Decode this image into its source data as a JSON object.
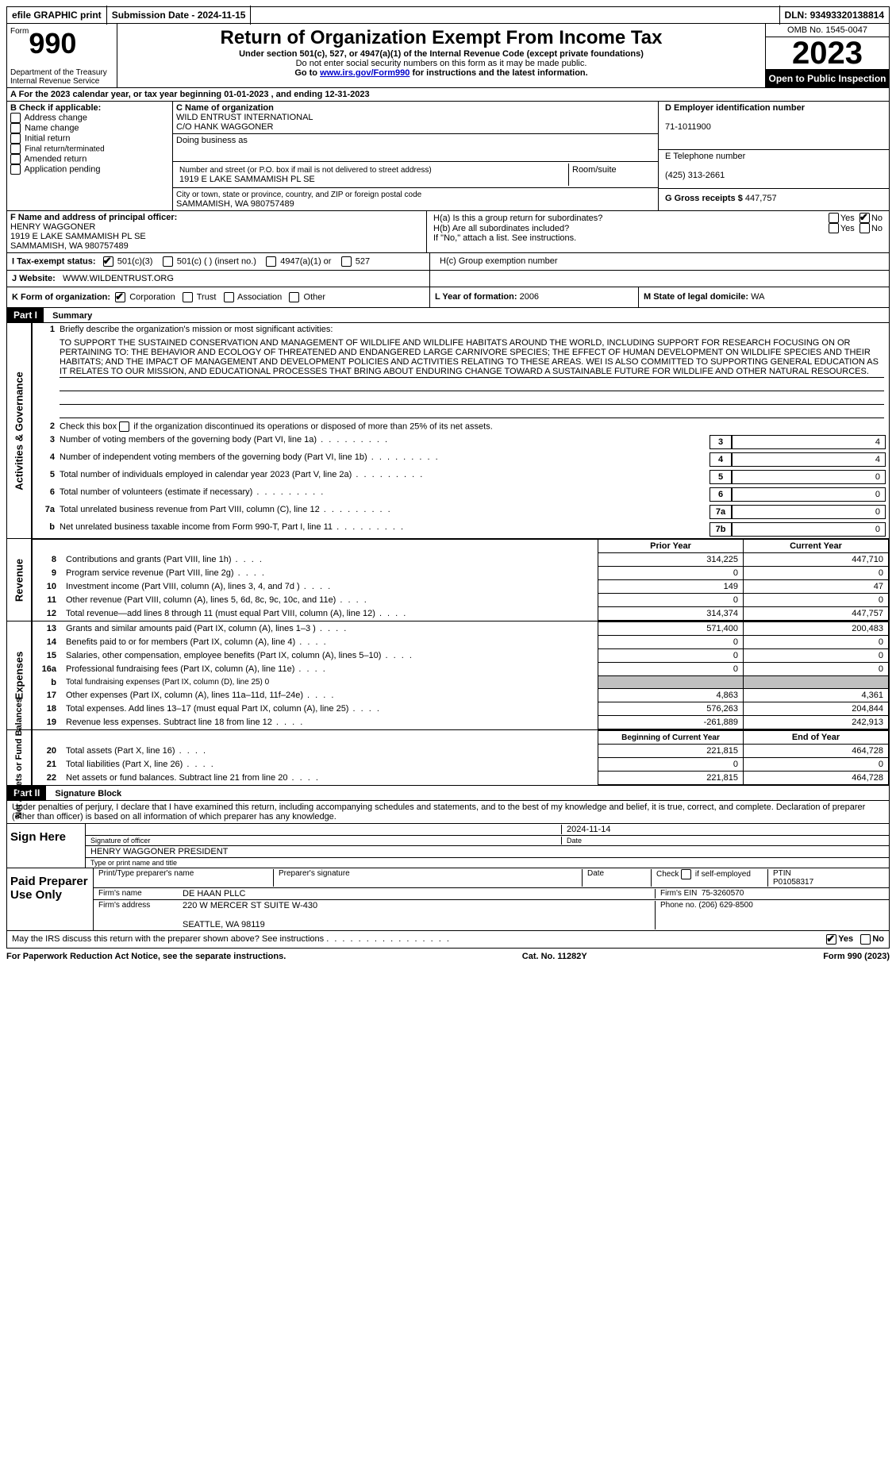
{
  "topbar": {
    "efile": "efile GRAPHIC print",
    "submission": "Submission Date - 2024-11-15",
    "dln_label": "DLN:",
    "dln": "93493320138814"
  },
  "header": {
    "form_label": "Form",
    "form_number": "990",
    "title": "Return of Organization Exempt From Income Tax",
    "subtitle": "Under section 501(c), 527, or 4947(a)(1) of the Internal Revenue Code (except private foundations)",
    "ssn_warn": "Do not enter social security numbers on this form as it may be made public.",
    "goto": "Go to ",
    "goto_link": "www.irs.gov/Form990",
    "goto_rest": " for instructions and the latest information.",
    "dept": "Department of the Treasury",
    "irs": "Internal Revenue Service",
    "omb": "OMB No. 1545-0047",
    "year": "2023",
    "open": "Open to Public Inspection"
  },
  "rowA": {
    "text": "A For the 2023 calendar year, or tax year beginning 01-01-2023    , and ending 12-31-2023"
  },
  "colB": {
    "label": "B Check if applicable:",
    "opts": [
      "Address change",
      "Name change",
      "Initial return",
      "Final return/terminated",
      "Amended return",
      "Application pending"
    ]
  },
  "colC": {
    "name_label": "C Name of organization",
    "name1": "WILD ENTRUST INTERNATIONAL",
    "name2": "C/O HANK WAGGONER",
    "dba_label": "Doing business as",
    "street_label": "Number and street (or P.O. box if mail is not delivered to street address)",
    "street": "1919 E LAKE SAMMAMISH PL SE",
    "suite_label": "Room/suite",
    "city_label": "City or town, state or province, country, and ZIP or foreign postal code",
    "city": "SAMMAMISH, WA  980757489"
  },
  "colD": {
    "ein_label": "D Employer identification number",
    "ein": "71-1011900",
    "tel_label": "E Telephone number",
    "tel": "(425) 313-2661",
    "gross_label": "G Gross receipts $",
    "gross": "447,757"
  },
  "colF": {
    "label": "F Name and address of principal officer:",
    "name": "HENRY WAGGONER",
    "addr1": "1919 E LAKE SAMMAMISH PL SE",
    "addr2": "SAMMAMISH, WA  980757489"
  },
  "colH": {
    "ha": "H(a)  Is this a group return for subordinates?",
    "hb": "H(b)  Are all subordinates included?",
    "hb_note": "If \"No,\" attach a list. See instructions.",
    "hc": "H(c)  Group exemption number",
    "yes": "Yes",
    "no": "No"
  },
  "rowI": {
    "label": "I  Tax-exempt status:",
    "o1": "501(c)(3)",
    "o2": "501(c) (  ) (insert no.)",
    "o3": "4947(a)(1) or",
    "o4": "527"
  },
  "rowJ": {
    "label": "J  Website:",
    "value": "WWW.WILDENTRUST.ORG"
  },
  "rowK": {
    "label": "K Form of organization:",
    "o1": "Corporation",
    "o2": "Trust",
    "o3": "Association",
    "o4": "Other"
  },
  "rowL": {
    "label": "L Year of formation:",
    "value": "2006"
  },
  "rowM": {
    "label": "M State of legal domicile:",
    "value": "WA"
  },
  "part1": {
    "header": "Part I",
    "title": "Summary",
    "side1": "Activities & Governance",
    "side2": "Revenue",
    "side3": "Expenses",
    "side4": "Net Assets or Fund Balances",
    "l1": "Briefly describe the organization's mission or most significant activities:",
    "mission": "TO SUPPORT THE SUSTAINED CONSERVATION AND MANAGEMENT OF WILDLIFE AND WILDLIFE HABITATS AROUND THE WORLD, INCLUDING SUPPORT FOR RESEARCH FOCUSING ON OR PERTAINING TO: THE BEHAVIOR AND ECOLOGY OF THREATENED AND ENDANGERED LARGE CARNIVORE SPECIES; THE EFFECT OF HUMAN DEVELOPMENT ON WILDLIFE SPECIES AND THEIR HABITATS; AND THE IMPACT OF MANAGEMENT AND DEVELOPMENT POLICIES AND ACTIVITIES RELATING TO THESE AREAS. WEI IS ALSO COMMITTED TO SUPPORTING GENERAL EDUCATION AS IT RELATES TO OUR MISSION, AND EDUCATIONAL PROCESSES THAT BRING ABOUT ENDURING CHANGE TOWARD A SUSTAINABLE FUTURE FOR WILDLIFE AND OTHER NATURAL RESOURCES.",
    "l2": "Check this box       if the organization discontinued its operations or disposed of more than 25% of its net assets.",
    "lines_single": [
      {
        "n": "3",
        "t": "Number of voting members of the governing body (Part VI, line 1a)",
        "b": "3",
        "v": "4"
      },
      {
        "n": "4",
        "t": "Number of independent voting members of the governing body (Part VI, line 1b)",
        "b": "4",
        "v": "4"
      },
      {
        "n": "5",
        "t": "Total number of individuals employed in calendar year 2023 (Part V, line 2a)",
        "b": "5",
        "v": "0"
      },
      {
        "n": "6",
        "t": "Total number of volunteers (estimate if necessary)",
        "b": "6",
        "v": "0"
      },
      {
        "n": "7a",
        "t": "Total unrelated business revenue from Part VIII, column (C), line 12",
        "b": "7a",
        "v": "0"
      },
      {
        "n": "b",
        "t": "Net unrelated business taxable income from Form 990-T, Part I, line 11",
        "b": "7b",
        "v": "0"
      }
    ],
    "col_prior": "Prior Year",
    "col_current": "Current Year",
    "revenue_lines": [
      {
        "n": "8",
        "t": "Contributions and grants (Part VIII, line 1h)",
        "p": "314,225",
        "c": "447,710"
      },
      {
        "n": "9",
        "t": "Program service revenue (Part VIII, line 2g)",
        "p": "0",
        "c": "0"
      },
      {
        "n": "10",
        "t": "Investment income (Part VIII, column (A), lines 3, 4, and 7d )",
        "p": "149",
        "c": "47"
      },
      {
        "n": "11",
        "t": "Other revenue (Part VIII, column (A), lines 5, 6d, 8c, 9c, 10c, and 11e)",
        "p": "0",
        "c": "0"
      },
      {
        "n": "12",
        "t": "Total revenue—add lines 8 through 11 (must equal Part VIII, column (A), line 12)",
        "p": "314,374",
        "c": "447,757"
      }
    ],
    "expense_lines": [
      {
        "n": "13",
        "t": "Grants and similar amounts paid (Part IX, column (A), lines 1–3 )",
        "p": "571,400",
        "c": "200,483"
      },
      {
        "n": "14",
        "t": "Benefits paid to or for members (Part IX, column (A), line 4)",
        "p": "0",
        "c": "0"
      },
      {
        "n": "15",
        "t": "Salaries, other compensation, employee benefits (Part IX, column (A), lines 5–10)",
        "p": "0",
        "c": "0"
      },
      {
        "n": "16a",
        "t": "Professional fundraising fees (Part IX, column (A), line 11e)",
        "p": "0",
        "c": "0"
      }
    ],
    "l16b": "Total fundraising expenses (Part IX, column (D), line 25) 0",
    "expense_lines2": [
      {
        "n": "17",
        "t": "Other expenses (Part IX, column (A), lines 11a–11d, 11f–24e)",
        "p": "4,863",
        "c": "4,361"
      },
      {
        "n": "18",
        "t": "Total expenses. Add lines 13–17 (must equal Part IX, column (A), line 25)",
        "p": "576,263",
        "c": "204,844"
      },
      {
        "n": "19",
        "t": "Revenue less expenses. Subtract line 18 from line 12",
        "p": "-261,889",
        "c": "242,913"
      }
    ],
    "col_begin": "Beginning of Current Year",
    "col_end": "End of Year",
    "net_lines": [
      {
        "n": "20",
        "t": "Total assets (Part X, line 16)",
        "p": "221,815",
        "c": "464,728"
      },
      {
        "n": "21",
        "t": "Total liabilities (Part X, line 26)",
        "p": "0",
        "c": "0"
      },
      {
        "n": "22",
        "t": "Net assets or fund balances. Subtract line 21 from line 20",
        "p": "221,815",
        "c": "464,728"
      }
    ]
  },
  "part2": {
    "header": "Part II",
    "title": "Signature Block",
    "perjury": "Under penalties of perjury, I declare that I have examined this return, including accompanying schedules and statements, and to the best of my knowledge and belief, it is true, correct, and complete. Declaration of preparer (other than officer) is based on all information of which preparer has any knowledge.",
    "sign_here": "Sign Here",
    "sig_officer": "Signature of officer",
    "sig_date_val": "2024-11-14",
    "date": "Date",
    "officer_name": "HENRY WAGGONER  PRESIDENT",
    "type_name": "Type or print name and title",
    "paid_prep": "Paid Preparer Use Only",
    "prep_name_label": "Print/Type preparer's name",
    "prep_sig_label": "Preparer's signature",
    "prep_date_label": "Date",
    "self_emp": "Check       if self-employed",
    "ptin_label": "PTIN",
    "ptin": "P01058317",
    "firm_name_label": "Firm's name",
    "firm_name": "DE HAAN PLLC",
    "firm_ein_label": "Firm's EIN",
    "firm_ein": "75-3260570",
    "firm_addr_label": "Firm's address",
    "firm_addr1": "220 W MERCER ST SUITE W-430",
    "firm_addr2": "SEATTLE, WA  98119",
    "phone_label": "Phone no.",
    "phone": "(206) 629-8500",
    "discuss": "May the IRS discuss this return with the preparer shown above? See instructions ",
    "yes": "Yes",
    "no": "No"
  },
  "footer": {
    "left": "For Paperwork Reduction Act Notice, see the separate instructions.",
    "center": "Cat. No. 11282Y",
    "right": "Form 990 (2023)"
  }
}
